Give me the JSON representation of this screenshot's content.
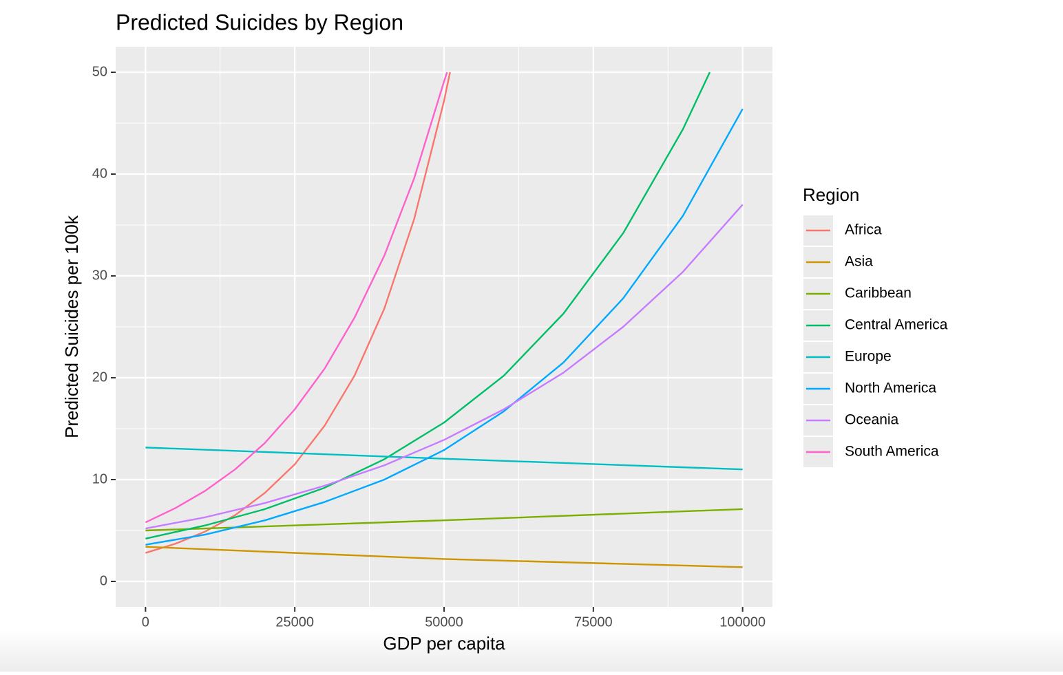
{
  "chart_data": {
    "type": "line",
    "title": "Predicted Suicides by Region",
    "x_label": "GDP per capita",
    "y_label": "Predicted Suicides per 100k",
    "legend_title": "Region",
    "legend_position": "right",
    "grid": true,
    "xlim": [
      -5000,
      105000
    ],
    "ylim": [
      -2.5,
      52.5
    ],
    "xticks": [
      0,
      25000,
      50000,
      75000,
      100000
    ],
    "yticks": [
      0,
      10,
      20,
      30,
      40,
      50
    ],
    "series": [
      {
        "name": "Africa",
        "color": "#F8766D",
        "x": [
          0,
          5000,
          10000,
          15000,
          20000,
          25000,
          30000,
          35000,
          40000,
          45000,
          50000,
          51000
        ],
        "values": [
          2.8,
          3.7,
          4.9,
          6.5,
          8.7,
          11.5,
          15.3,
          20.2,
          26.8,
          35.6,
          47.2,
          50.0
        ]
      },
      {
        "name": "Asia",
        "color": "#CD9600",
        "x": [
          0,
          50000,
          100000
        ],
        "values": [
          3.4,
          2.2,
          1.4
        ]
      },
      {
        "name": "Caribbean",
        "color": "#7CAE00",
        "x": [
          0,
          50000,
          100000
        ],
        "values": [
          5.0,
          6.0,
          7.1
        ]
      },
      {
        "name": "Central America",
        "color": "#00BE67",
        "x": [
          0,
          10000,
          20000,
          30000,
          40000,
          50000,
          60000,
          70000,
          80000,
          90000,
          94500
        ],
        "values": [
          4.2,
          5.5,
          7.1,
          9.2,
          12.0,
          15.6,
          20.2,
          26.3,
          34.2,
          44.4,
          50.0
        ]
      },
      {
        "name": "Europe",
        "color": "#00BFC4",
        "x": [
          0,
          50000,
          100000
        ],
        "values": [
          13.15,
          12.05,
          11.0
        ]
      },
      {
        "name": "North America",
        "color": "#00A9FF",
        "x": [
          0,
          10000,
          20000,
          30000,
          40000,
          50000,
          60000,
          70000,
          80000,
          90000,
          100000
        ],
        "values": [
          3.6,
          4.6,
          6.0,
          7.8,
          10.0,
          12.9,
          16.7,
          21.5,
          27.8,
          35.9,
          46.4
        ]
      },
      {
        "name": "Oceania",
        "color": "#C77CFF",
        "x": [
          0,
          10000,
          20000,
          30000,
          40000,
          50000,
          60000,
          70000,
          80000,
          90000,
          100000
        ],
        "values": [
          5.2,
          6.3,
          7.7,
          9.4,
          11.4,
          13.9,
          16.9,
          20.5,
          25.0,
          30.4,
          37.0
        ]
      },
      {
        "name": "South America",
        "color": "#FF61CC",
        "x": [
          0,
          5000,
          10000,
          15000,
          20000,
          25000,
          30000,
          35000,
          40000,
          45000,
          50000,
          50500
        ],
        "values": [
          5.8,
          7.2,
          8.9,
          11.0,
          13.6,
          16.9,
          20.9,
          25.9,
          32.0,
          39.6,
          49.1,
          50.0
        ]
      }
    ]
  }
}
